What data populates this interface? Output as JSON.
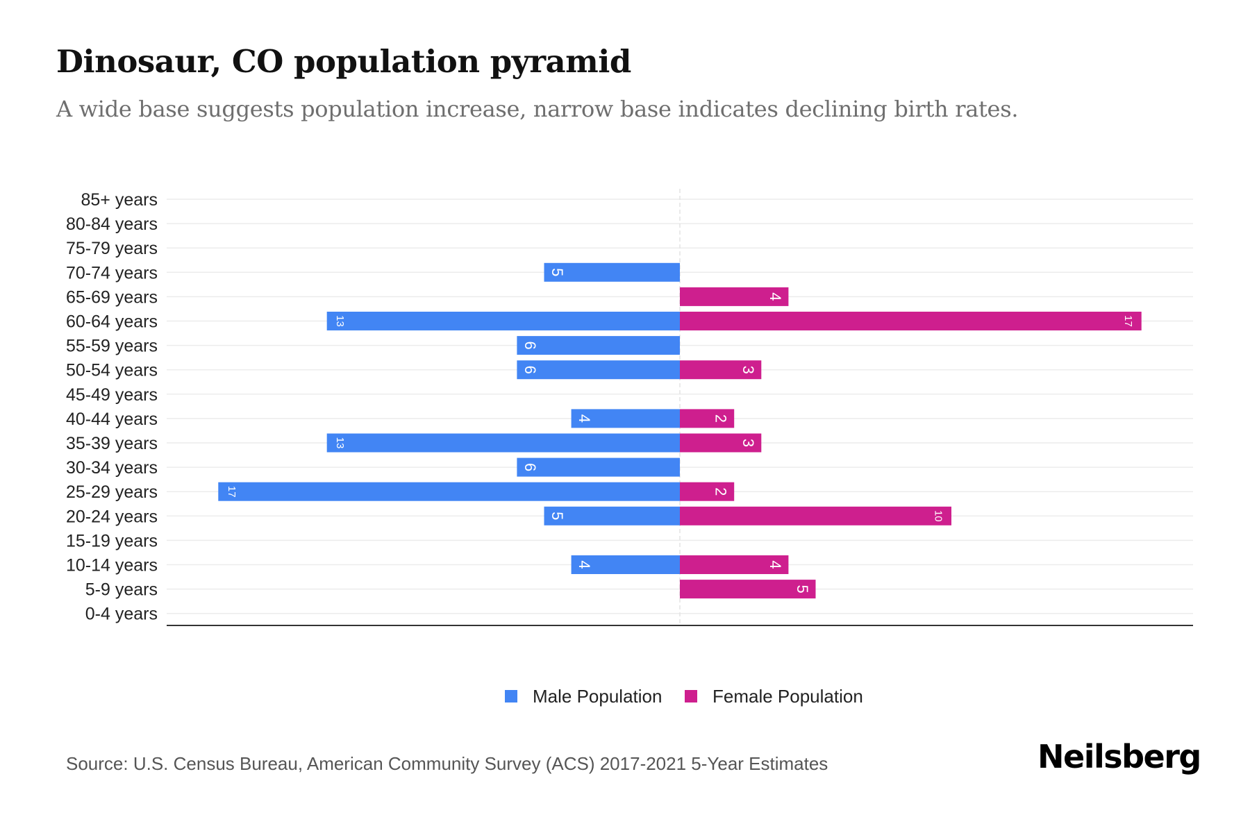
{
  "header": {
    "title": "Dinosaur, CO population pyramid",
    "subtitle": "A wide base suggests population increase, narrow base indicates declining birth rates."
  },
  "colors": {
    "male": "#4285F4",
    "female": "#CE1F8E"
  },
  "legend": {
    "items": [
      {
        "label": "Male Population",
        "color": "#4285F4"
      },
      {
        "label": "Female Population",
        "color": "#CE1F8E"
      }
    ]
  },
  "footer": {
    "source": "Source: U.S. Census Bureau, American Community Survey (ACS) 2017-2021 5-Year Estimates",
    "brand": "Neilsberg"
  },
  "chart_data": {
    "type": "bar",
    "orientation": "horizontal",
    "subtype": "population-pyramid",
    "title": "Dinosaur, CO population pyramid",
    "subtitle": "A wide base suggests population increase, narrow base indicates declining birth rates.",
    "xlabel": "",
    "ylabel": "",
    "categories": [
      "85+ years",
      "80-84 years",
      "75-79 years",
      "70-74 years",
      "65-69 years",
      "60-64 years",
      "55-59 years",
      "50-54 years",
      "45-49 years",
      "40-44 years",
      "35-39 years",
      "30-34 years",
      "25-29 years",
      "20-24 years",
      "15-19 years",
      "10-14 years",
      "5-9 years",
      "0-4 years"
    ],
    "series": [
      {
        "name": "Male Population",
        "side": "left",
        "values": [
          0,
          0,
          0,
          5,
          0,
          13,
          6,
          6,
          0,
          4,
          13,
          6,
          17,
          5,
          0,
          4,
          0,
          0
        ]
      },
      {
        "name": "Female Population",
        "side": "right",
        "values": [
          0,
          0,
          0,
          0,
          4,
          17,
          0,
          3,
          0,
          2,
          3,
          0,
          2,
          10,
          0,
          4,
          5,
          0
        ]
      }
    ],
    "xlim": [
      -18.9,
      18.9
    ],
    "grid": true,
    "data_labels": true,
    "legend_position": "bottom-center"
  }
}
